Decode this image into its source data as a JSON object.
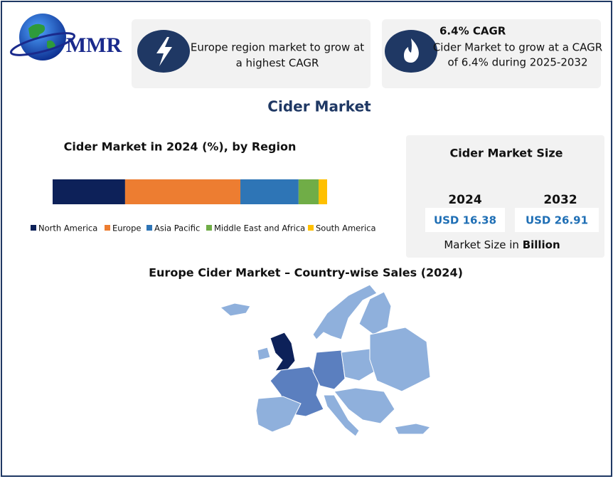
{
  "logo": {
    "text": "MMR"
  },
  "cards": [
    {
      "lines": [
        "Europe region market to grow at",
        "a highest CAGR"
      ]
    },
    {
      "heading": "6.4% CAGR",
      "lines": [
        "Cider Market to grow at a CAGR",
        "of 6.4% during 2025-2032"
      ]
    }
  ],
  "title": "Cider Market",
  "chart_data": {
    "type": "stacked-bar",
    "title": "Cider Market in 2024 (%), by Region",
    "orientation": "horizontal",
    "series": [
      {
        "name": "North America",
        "color": "#0d2159",
        "values": [
          26.4
        ]
      },
      {
        "name": "Europe",
        "color": "#ed7d31",
        "values": [
          42
        ]
      },
      {
        "name": "Asia Pacific",
        "color": "#2e75b6",
        "values": [
          21.2
        ]
      },
      {
        "name": "Middle East and Africa",
        "color": "#70ad47",
        "values": [
          7.3
        ]
      },
      {
        "name": "South America",
        "color": "#ffc000",
        "values": [
          3.1
        ]
      }
    ],
    "legend": "bottom"
  },
  "market_size": {
    "title": "Cider Market Size",
    "years": [
      "2024",
      "2032"
    ],
    "values": [
      "USD 16.38",
      "USD 26.91"
    ],
    "note": [
      "Market Size in",
      "Billion"
    ]
  },
  "map": {
    "title": "Europe Cider Market – Country-wise Sales (2024)"
  }
}
